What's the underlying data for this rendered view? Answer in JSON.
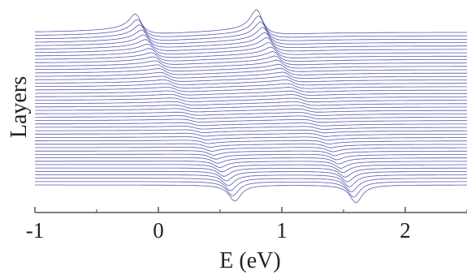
{
  "chart_data": {
    "type": "line",
    "xlabel": "E (eV)",
    "ylabel": "Layers",
    "xlim": [
      -1,
      2.5
    ],
    "x_ticks": [
      -1,
      0,
      1,
      2
    ],
    "x_tick_labels": [
      "-1",
      "0",
      "1",
      "2"
    ],
    "y_ticks": [],
    "layer_count": 46,
    "description_of_series": "stacked waterfall of local density-of-states curves, one per layer, vertically offset",
    "series_color": "#3b3b9e",
    "features": {
      "left_peak_top_layer_eV": -0.18,
      "left_dip_bottom_layer_eV": 0.62,
      "right_peak_top_layer_eV": 0.8,
      "right_dip_bottom_layer_eV": 1.6
    },
    "grid": false,
    "legend": "none"
  }
}
